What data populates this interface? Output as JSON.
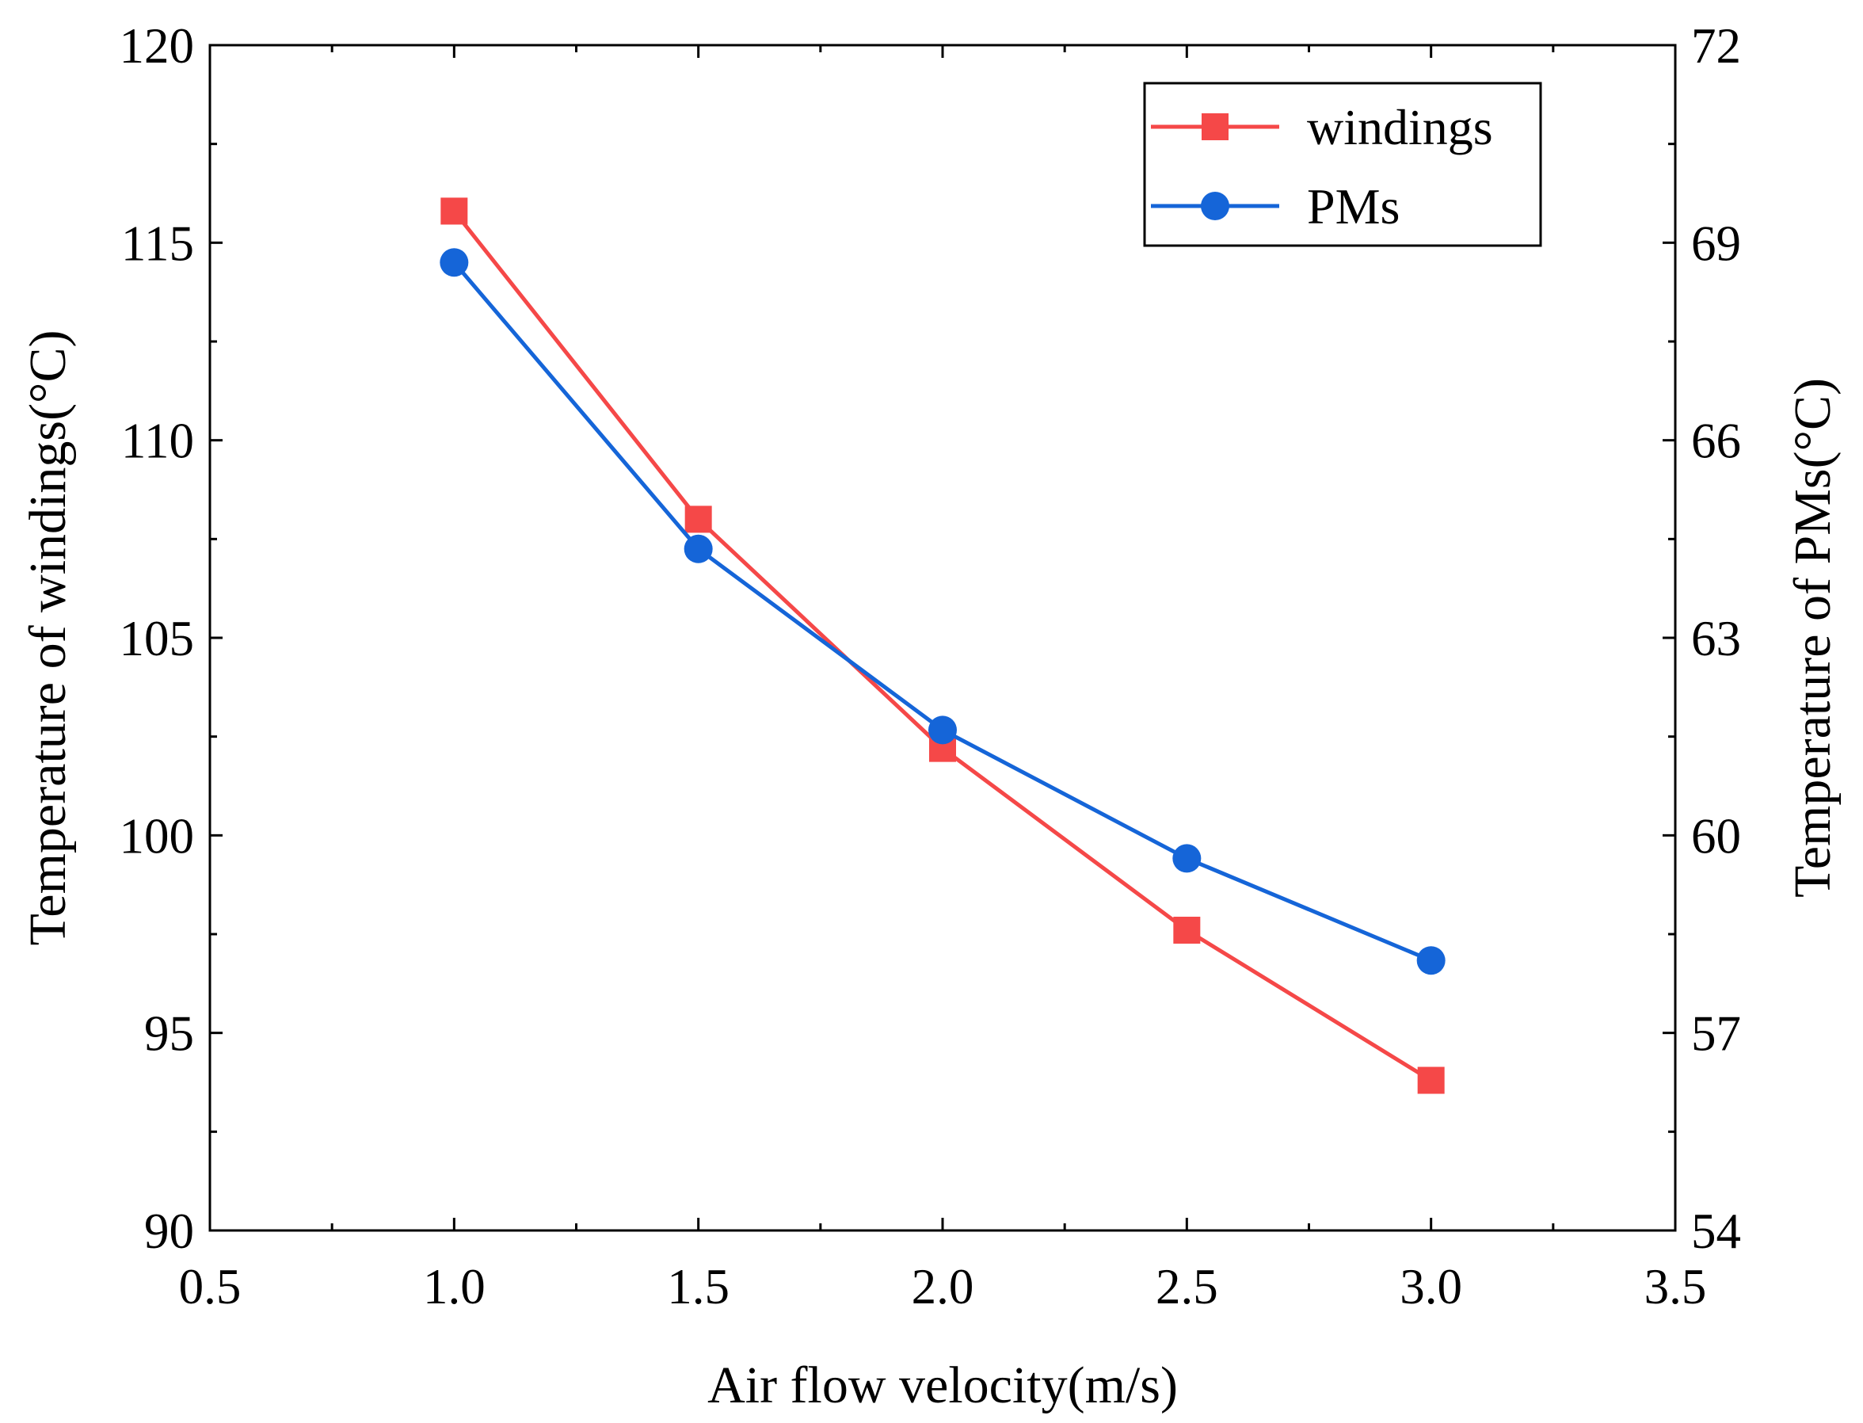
{
  "chart_data": {
    "type": "line",
    "title": "",
    "xlabel": "Air flow velocity(m/s)",
    "ylabel": "Temperature of windings(°C)",
    "y2label": "Temperature of PMs(°C)",
    "xlim": [
      0.5,
      3.5
    ],
    "ylim": [
      90,
      120
    ],
    "y2lim": [
      54,
      72
    ],
    "x_ticks": [
      0.5,
      1.0,
      1.5,
      2.0,
      2.5,
      3.0,
      3.5
    ],
    "x_tick_labels": [
      "0.5",
      "1.0",
      "1.5",
      "2.0",
      "2.5",
      "3.0",
      "3.5"
    ],
    "y_ticks": [
      90,
      95,
      100,
      105,
      110,
      115,
      120
    ],
    "y_tick_labels": [
      "90",
      "95",
      "100",
      "105",
      "110",
      "115",
      "120"
    ],
    "y2_ticks": [
      54,
      57,
      60,
      63,
      66,
      69,
      72
    ],
    "y2_tick_labels": [
      "54",
      "57",
      "60",
      "63",
      "66",
      "69",
      "72"
    ],
    "grid": false,
    "legend_position": "top-right",
    "x": [
      1.0,
      1.5,
      2.0,
      2.5,
      3.0
    ],
    "series": [
      {
        "name": "windings",
        "axis": "left",
        "marker": "square",
        "color": "#f54848",
        "values": [
          115.8,
          108.0,
          102.2,
          97.6,
          93.8
        ]
      },
      {
        "name": "PMs",
        "axis": "right",
        "marker": "circle",
        "color": "#1565d8",
        "values": [
          68.7,
          64.35,
          61.6,
          59.65,
          58.1
        ]
      }
    ]
  }
}
